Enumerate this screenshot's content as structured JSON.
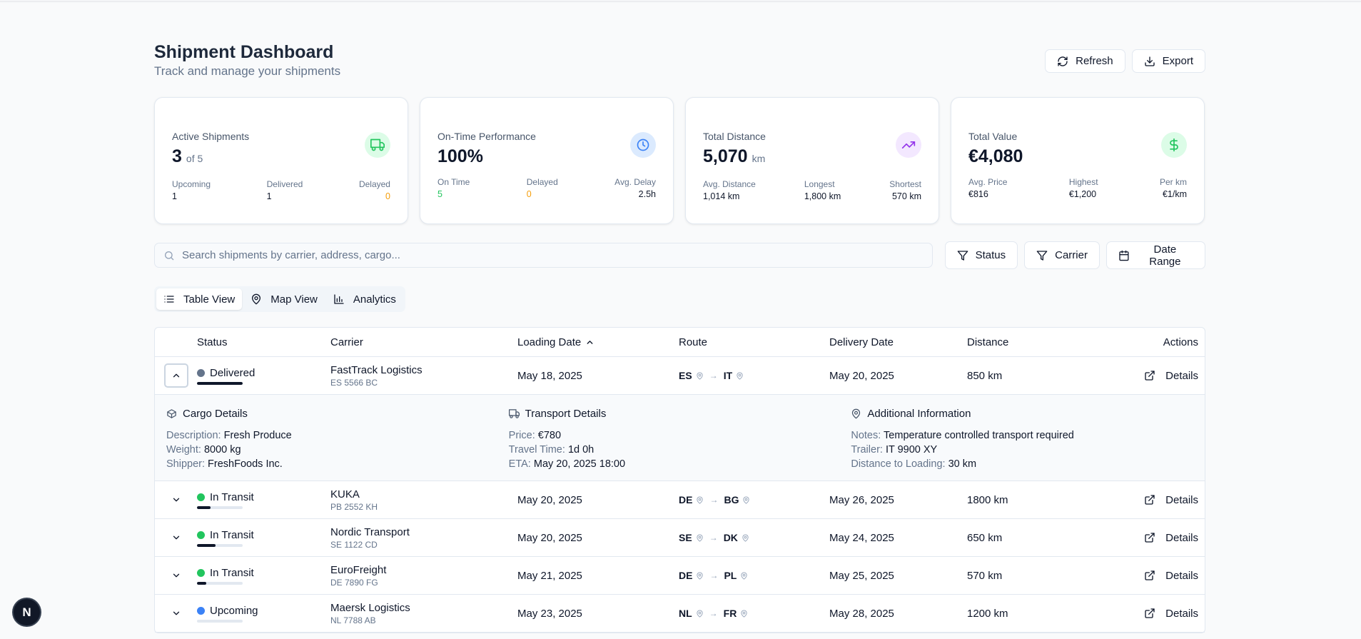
{
  "header": {
    "title": "Shipment Dashboard",
    "subtitle": "Track and manage your shipments",
    "refresh_label": "Refresh",
    "export_label": "Export"
  },
  "cards": {
    "active": {
      "label": "Active Shipments",
      "value": "3",
      "sub": "of 5",
      "stats": [
        {
          "label": "Upcoming",
          "value": "1"
        },
        {
          "label": "Delivered",
          "value": "1"
        },
        {
          "label": "Delayed",
          "value": "0"
        }
      ]
    },
    "ontime": {
      "label": "On-Time Performance",
      "value": "100%",
      "stats": [
        {
          "label": "On Time",
          "value": "5"
        },
        {
          "label": "Delayed",
          "value": "0"
        },
        {
          "label": "Avg. Delay",
          "value": "2.5h"
        }
      ]
    },
    "distance": {
      "label": "Total Distance",
      "value": "5,070",
      "sub": "km",
      "stats": [
        {
          "label": "Avg. Distance",
          "value": "1,014 km"
        },
        {
          "label": "Longest",
          "value": "1,800 km"
        },
        {
          "label": "Shortest",
          "value": "570 km"
        }
      ]
    },
    "value": {
      "label": "Total Value",
      "value": "€4,080",
      "stats": [
        {
          "label": "Avg. Price",
          "value": "€816"
        },
        {
          "label": "Highest",
          "value": "€1,200"
        },
        {
          "label": "Per km",
          "value": "€1/km"
        }
      ]
    }
  },
  "filters": {
    "search_placeholder": "Search shipments by carrier, address, cargo...",
    "status_label": "Status",
    "carrier_label": "Carrier",
    "date_label": "Date Range"
  },
  "views": {
    "table": "Table View",
    "map": "Map View",
    "analytics": "Analytics"
  },
  "table": {
    "columns": [
      "Status",
      "Carrier",
      "Loading Date",
      "Route",
      "Delivery Date",
      "Distance",
      "Actions"
    ],
    "details_label": "Details",
    "rows": [
      {
        "status": "Delivered",
        "progress": 1.0,
        "carrier": "FastTrack Logistics",
        "plate": "ES 5566 BC",
        "loading": "May 18, 2025",
        "from": "ES",
        "to": "IT",
        "delivery": "May 20, 2025",
        "distance": "850 km"
      },
      {
        "status": "In Transit",
        "progress": 0.3,
        "carrier": "KUKA",
        "plate": "PB 2552 KH",
        "loading": "May 20, 2025",
        "from": "DE",
        "to": "BG",
        "delivery": "May 26, 2025",
        "distance": "1800 km"
      },
      {
        "status": "In Transit",
        "progress": 0.4,
        "carrier": "Nordic Transport",
        "plate": "SE 1122 CD",
        "loading": "May 20, 2025",
        "from": "SE",
        "to": "DK",
        "delivery": "May 24, 2025",
        "distance": "650 km"
      },
      {
        "status": "In Transit",
        "progress": 0.2,
        "carrier": "EuroFreight",
        "plate": "DE 7890 FG",
        "loading": "May 21, 2025",
        "from": "DE",
        "to": "PL",
        "delivery": "May 25, 2025",
        "distance": "570 km"
      },
      {
        "status": "Upcoming",
        "progress": 0.0,
        "carrier": "Maersk Logistics",
        "plate": "NL 7788 AB",
        "loading": "May 23, 2025",
        "from": "NL",
        "to": "FR",
        "delivery": "May 28, 2025",
        "distance": "1200 km"
      }
    ],
    "expanded": {
      "cargo": {
        "title": "Cargo Details",
        "description_k": "Description:",
        "description_v": "Fresh Produce",
        "weight_k": "Weight:",
        "weight_v": "8000 kg",
        "shipper_k": "Shipper:",
        "shipper_v": "FreshFoods Inc."
      },
      "transport": {
        "title": "Transport Details",
        "price_k": "Price:",
        "price_v": "€780",
        "travel_k": "Travel Time:",
        "travel_v": "1d 0h",
        "eta_k": "ETA:",
        "eta_v": "May 20, 2025 18:00"
      },
      "additional": {
        "title": "Additional Information",
        "notes_k": "Notes:",
        "notes_v": "Temperature controlled transport required",
        "trailer_k": "Trailer:",
        "trailer_v": "IT 9900 XY",
        "dist_k": "Distance to Loading:",
        "dist_v": "30 km"
      }
    }
  },
  "badge": {
    "letter": "N"
  },
  "colors": {
    "delivered": "#64748b",
    "transit": "#22c55e",
    "upcoming": "#3b82f6",
    "on_time": "#22c55e",
    "delayed": "#f59e0b"
  }
}
